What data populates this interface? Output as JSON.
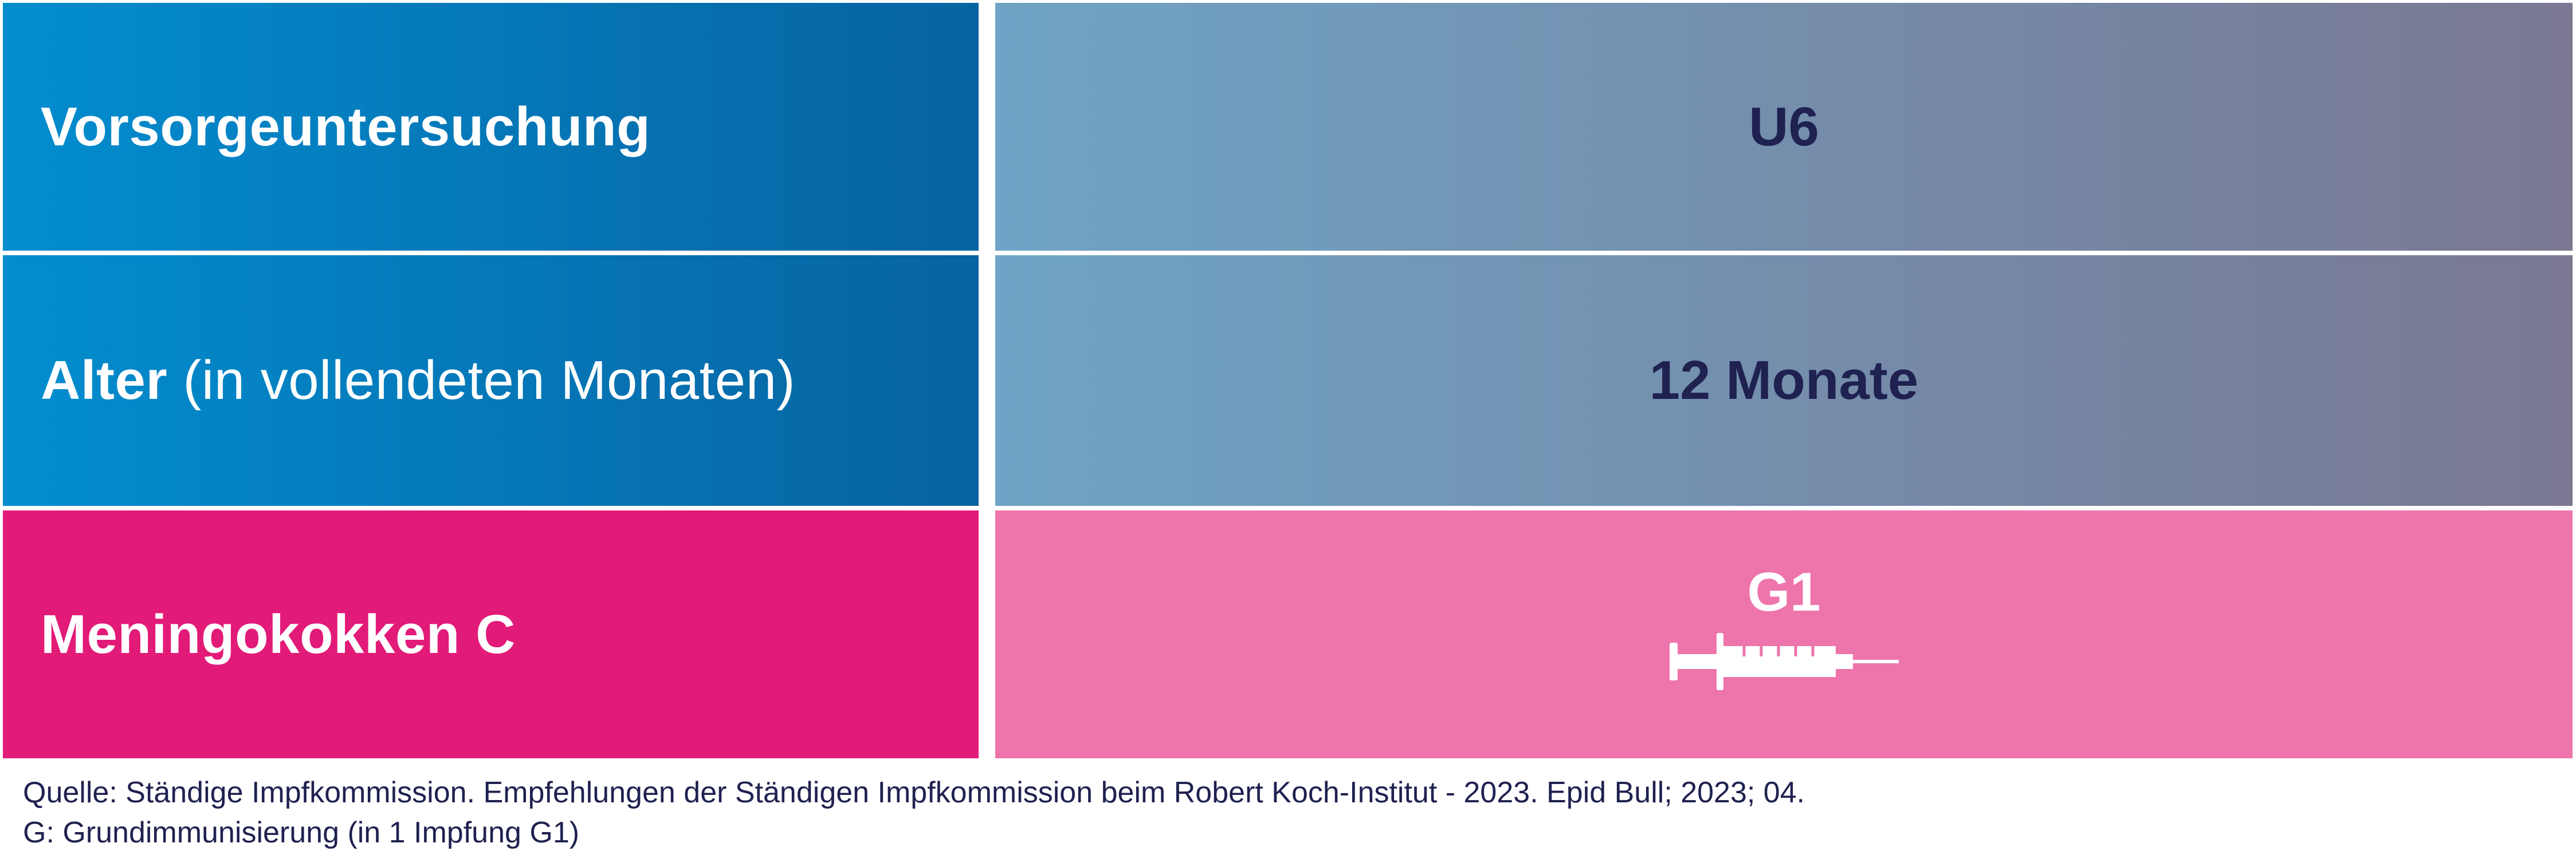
{
  "rows": [
    {
      "label_bold": "Vorsorgeuntersuchung",
      "label_light": "",
      "value": "U6"
    },
    {
      "label_bold": "Alter",
      "label_light": " (in vollendeten Monaten)",
      "value": "12 Monate"
    },
    {
      "label_bold": "Meningokokken C",
      "label_light": "",
      "value": "G1",
      "icon": "syringe-icon"
    }
  ],
  "colors": {
    "blue_start": "#028dcf",
    "blue_end": "#0863a1",
    "grey_start": "#6fa4c6",
    "grey_end": "#7a7892",
    "pink_dark": "#e21a78",
    "pink_light": "#ee74ac",
    "navy_text": "#1f2150"
  },
  "footnotes": {
    "source": "Quelle: Ständige Impfkommission. Empfehlungen der Ständigen Impfkommission beim Robert Koch-Institut - 2023. Epid Bull; 2023; 04.",
    "legend": "G: Grundimmunisierung (in 1 Impfung G1)"
  }
}
